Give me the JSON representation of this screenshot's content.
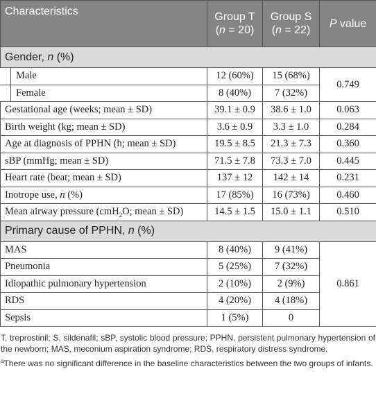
{
  "table": {
    "header": [
      "Characteristics",
      [
        {
          "text": "Group T ("
        },
        {
          "text": "n",
          "style": "italic"
        },
        {
          "text": " = 20)"
        }
      ],
      [
        {
          "text": "Group S ("
        },
        {
          "text": "n",
          "style": "italic"
        },
        {
          "text": " = 22)"
        }
      ],
      [
        {
          "text": "P",
          "style": "italic"
        },
        {
          "text": " value"
        }
      ]
    ],
    "sections": [
      {
        "title": [
          {
            "text": "Gender, "
          },
          {
            "text": "n",
            "style": "italic"
          },
          {
            "text": " (%)"
          }
        ],
        "rows": [
          {
            "indent": true,
            "cells": [
              "Male",
              "12 (60%)",
              "15 (68%)",
              "0.749"
            ]
          },
          {
            "indent": true,
            "cells": [
              "Female",
              "8 (40%)",
              "7 (32%)",
              null
            ]
          },
          {
            "cells": [
              "Gestational age (weeks; mean ± SD)",
              "39.1 ± 0.9",
              "38.6 ± 1.0",
              "0.063"
            ]
          },
          {
            "cells": [
              "Birth weight (kg; mean ± SD)",
              "3.6 ± 0.9",
              "3.3 ± 1.0",
              "0.284"
            ]
          },
          {
            "cells": [
              "Age at diagnosis of PPHN (h; mean ± SD)",
              "19.5 ± 8.5",
              "21.3 ± 7.3",
              "0.360"
            ]
          },
          {
            "cells": [
              "sBP (mmHg; mean ± SD)",
              "71.5 ± 7.8",
              "73.3 ± 7.0",
              "0.445"
            ]
          },
          {
            "cells": [
              "Heart rate (beat; mean ± SD)",
              "137 ± 12",
              "142 ± 14",
              "0.231"
            ]
          },
          {
            "cells": [
              [
                {
                  "text": "Inotrope use, "
                },
                {
                  "text": "n",
                  "style": "italic"
                },
                {
                  "text": " (%)"
                }
              ],
              "17 (85%)",
              "16 (73%)",
              "0.460"
            ]
          },
          {
            "cells": [
              [
                {
                  "text": "Mean airway pressure (cmH"
                },
                {
                  "text": "2",
                  "style": "sub"
                },
                {
                  "text": "O; mean ± SD)"
                }
              ],
              "14.5 ± 1.5",
              "15.0 ± 1.1",
              "0.510"
            ]
          }
        ]
      },
      {
        "title": [
          {
            "text": "Primary cause of PPHN, "
          },
          {
            "text": "n",
            "style": "italic"
          },
          {
            "text": " (%)"
          }
        ],
        "rows": [
          {
            "cells": [
              "MAS",
              "8 (40%)",
              "9 (41%)",
              "0.861"
            ]
          },
          {
            "cells": [
              "Pneumonia",
              "5 (25%)",
              "7 (32%)",
              null
            ]
          },
          {
            "cells": [
              "Idiopathic pulmonary hypertension",
              "2 (10%)",
              "2 (9%)",
              null
            ]
          },
          {
            "cells": [
              "RDS",
              "4 (20%)",
              "4 (18%)",
              null
            ]
          },
          {
            "cells": [
              "Sepsis",
              "1 (5%)",
              "0",
              null
            ]
          }
        ]
      }
    ],
    "notes": [
      "T, treprostinil; S, sildenafil; sBP, systolic blood pressure; PPHN, persistent pulmonary hypertension of the newborn; MAS, meconium aspiration syndrome; RDS, respiratory distress syndrome.",
      [
        {
          "text": "a",
          "style": "sup"
        },
        {
          "text": "There was no significant difference in the baseline characteristics between the two groups of infants."
        }
      ]
    ]
  }
}
